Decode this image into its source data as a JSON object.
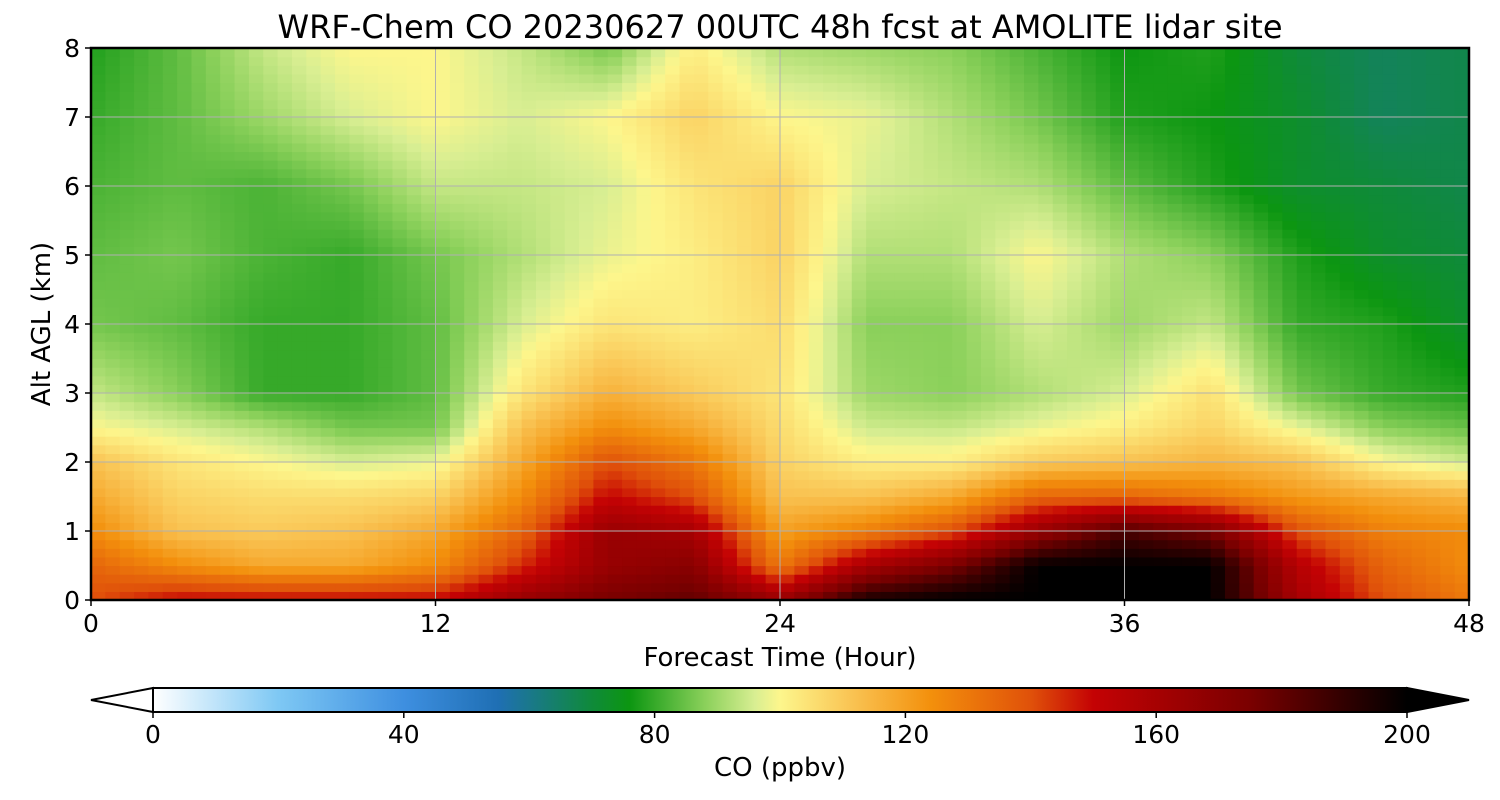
{
  "chart_data": {
    "type": "heatmap",
    "title": "WRF-Chem CO  20230627 00UTC 48h fcst at AMOLITE lidar site",
    "xlabel": "Forecast Time (Hour)",
    "ylabel": "Alt AGL (km)",
    "x_ticks": [
      0,
      12,
      24,
      36,
      48
    ],
    "y_ticks": [
      0,
      1,
      2,
      3,
      4,
      5,
      6,
      7,
      8
    ],
    "xlim": [
      0,
      48
    ],
    "ylim": [
      0,
      8
    ],
    "grid": true,
    "colorbar": {
      "label": "CO  (ppbv)",
      "range": [
        0,
        200
      ],
      "ticks": [
        0,
        40,
        80,
        120,
        160,
        200
      ],
      "extend": "both",
      "orientation": "horizontal",
      "colors": {
        "0": "#ffffff",
        "20": "#7ec8f4",
        "40": "#3e8fe0",
        "55": "#1f6fb4",
        "70": "#0f8a3a",
        "76": "#0c9611",
        "88": "#8ad05a",
        "96": "#d8ee92",
        "100": "#fdf68c",
        "112": "#f9c150",
        "124": "#f3900c",
        "140": "#e0510a",
        "150": "#c40204",
        "175": "#7a0000",
        "200": "#000000"
      }
    },
    "hours": [
      0,
      3,
      6,
      9,
      12,
      15,
      18,
      21,
      24,
      27,
      30,
      33,
      36,
      39,
      42,
      45,
      48
    ],
    "altitudes_km": [
      0,
      0.5,
      1,
      1.5,
      2,
      2.5,
      3,
      4,
      5,
      6,
      7,
      8
    ],
    "values": [
      [
        140,
        150,
        150,
        150,
        150,
        165,
        175,
        180,
        165,
        195,
        200,
        200,
        200,
        200,
        160,
        140,
        130
      ],
      [
        135,
        125,
        118,
        118,
        125,
        145,
        165,
        170,
        130,
        160,
        175,
        200,
        200,
        200,
        155,
        135,
        125
      ],
      [
        125,
        112,
        110,
        112,
        118,
        135,
        165,
        160,
        120,
        128,
        140,
        165,
        185,
        175,
        140,
        128,
        125
      ],
      [
        118,
        108,
        106,
        106,
        108,
        125,
        150,
        140,
        112,
        112,
        118,
        135,
        135,
        130,
        122,
        118,
        115
      ],
      [
        112,
        104,
        100,
        96,
        98,
        118,
        140,
        130,
        108,
        102,
        102,
        110,
        112,
        115,
        112,
        100,
        95
      ],
      [
        100,
        96,
        92,
        86,
        86,
        112,
        125,
        118,
        106,
        95,
        94,
        98,
        102,
        108,
        98,
        88,
        85
      ],
      [
        94,
        88,
        80,
        80,
        84,
        104,
        116,
        110,
        104,
        90,
        88,
        92,
        96,
        105,
        86,
        80,
        78
      ],
      [
        86,
        84,
        80,
        80,
        84,
        96,
        104,
        102,
        106,
        88,
        88,
        96,
        90,
        94,
        80,
        78,
        72
      ],
      [
        84,
        86,
        82,
        80,
        86,
        92,
        98,
        102,
        108,
        92,
        92,
        100,
        92,
        88,
        78,
        72,
        70
      ],
      [
        82,
        84,
        82,
        86,
        94,
        94,
        96,
        104,
        108,
        96,
        94,
        92,
        84,
        78,
        72,
        70,
        68
      ],
      [
        80,
        84,
        90,
        96,
        100,
        96,
        100,
        108,
        100,
        98,
        92,
        86,
        78,
        76,
        72,
        66,
        68
      ],
      [
        78,
        84,
        94,
        100,
        100,
        94,
        86,
        102,
        92,
        90,
        88,
        82,
        76,
        78,
        70,
        66,
        68
      ]
    ]
  }
}
